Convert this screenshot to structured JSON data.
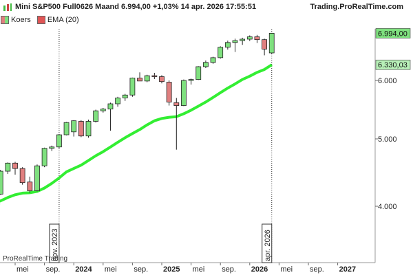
{
  "header": {
    "title": "Mini S&P500 Full0626 Maand 6.994,00 +1,03% 14 apr. 2026 17:55:51",
    "brand": "Trading.ProRealTime.com"
  },
  "legend": [
    {
      "label": "Koers",
      "color": "#55dd55"
    },
    {
      "label": "EMA (20)",
      "color": "#22cc22"
    }
  ],
  "watermark": "ProRealTime Trading",
  "chart_data": {
    "type": "candlestick",
    "colors": {
      "up": "#7fe07f",
      "down": "#e07f7f",
      "ema": "#33ee33",
      "price_tag": "#7fe07f",
      "ema_tag": "#b8f0b8"
    },
    "y_ticks": [
      4000,
      5000,
      6000
    ],
    "y_tick_labels": [
      "4.000",
      "5.000",
      "6.000"
    ],
    "last_price_label": "6.994,00",
    "ema_label": "6.330,03",
    "x_tick_labels": [
      {
        "month": 0,
        "label": "mei"
      },
      {
        "month": 4,
        "label": "sep."
      },
      {
        "month": 8,
        "label": "2024"
      },
      {
        "month": 12,
        "label": "mei"
      },
      {
        "month": 16,
        "label": "sep."
      },
      {
        "month": 20,
        "label": "2025"
      },
      {
        "month": 24,
        "label": "mei"
      },
      {
        "month": 28,
        "label": "sep."
      },
      {
        "month": 32,
        "label": "2026"
      },
      {
        "month": 36,
        "label": "mei"
      },
      {
        "month": 40,
        "label": "sep."
      },
      {
        "month": 44,
        "label": "2027"
      }
    ],
    "markers": [
      {
        "month": 6,
        "label": "nov. 2023"
      },
      {
        "month": 35,
        "label": "apr. 2026"
      }
    ],
    "candles": [
      {
        "m": -4,
        "o": 4130,
        "h": 4200,
        "l": 4070,
        "c": 4180
      },
      {
        "m": -3,
        "o": 4160,
        "h": 4220,
        "l": 4120,
        "c": 4200
      },
      {
        "m": -2,
        "o": 4180,
        "h": 4540,
        "l": 4170,
        "c": 4520
      },
      {
        "m": -1,
        "o": 4520,
        "h": 4650,
        "l": 4480,
        "c": 4640
      },
      {
        "m": 0,
        "o": 4640,
        "h": 4660,
        "l": 4470,
        "c": 4560
      },
      {
        "m": 1,
        "o": 4560,
        "h": 4580,
        "l": 4320,
        "c": 4350
      },
      {
        "m": 2,
        "o": 4360,
        "h": 4440,
        "l": 4200,
        "c": 4230
      },
      {
        "m": 3,
        "o": 4230,
        "h": 4620,
        "l": 4220,
        "c": 4600
      },
      {
        "m": 4,
        "o": 4600,
        "h": 4870,
        "l": 4580,
        "c": 4860
      },
      {
        "m": 5,
        "o": 4860,
        "h": 4900,
        "l": 4820,
        "c": 4880
      },
      {
        "m": 6,
        "o": 4880,
        "h": 5080,
        "l": 4860,
        "c": 5070
      },
      {
        "m": 7,
        "o": 5070,
        "h": 5290,
        "l": 5060,
        "c": 5280
      },
      {
        "m": 8,
        "o": 5120,
        "h": 5320,
        "l": 5040,
        "c": 5310
      },
      {
        "m": 9,
        "o": 5300,
        "h": 5320,
        "l": 5030,
        "c": 5050
      },
      {
        "m": 10,
        "o": 5050,
        "h": 5330,
        "l": 5020,
        "c": 5300
      },
      {
        "m": 11,
        "o": 5300,
        "h": 5500,
        "l": 5280,
        "c": 5480
      },
      {
        "m": 12,
        "o": 5480,
        "h": 5530,
        "l": 5450,
        "c": 5510
      },
      {
        "m": 13,
        "o": 5510,
        "h": 5620,
        "l": 5140,
        "c": 5600
      },
      {
        "m": 14,
        "o": 5600,
        "h": 5720,
        "l": 5550,
        "c": 5700
      },
      {
        "m": 15,
        "o": 5700,
        "h": 5770,
        "l": 5650,
        "c": 5750
      },
      {
        "m": 16,
        "o": 5750,
        "h": 6060,
        "l": 5720,
        "c": 6050
      },
      {
        "m": 17,
        "o": 6050,
        "h": 6170,
        "l": 5990,
        "c": 5990
      },
      {
        "m": 18,
        "o": 5990,
        "h": 6120,
        "l": 5970,
        "c": 6100
      },
      {
        "m": 19,
        "o": 6100,
        "h": 6160,
        "l": 6030,
        "c": 6080
      },
      {
        "m": 20,
        "o": 6080,
        "h": 6110,
        "l": 5950,
        "c": 5980
      },
      {
        "m": 21,
        "o": 5970,
        "h": 6000,
        "l": 5570,
        "c": 5630
      },
      {
        "m": 22,
        "o": 5620,
        "h": 5700,
        "l": 4840,
        "c": 5570
      },
      {
        "m": 23,
        "o": 5570,
        "h": 6020,
        "l": 5560,
        "c": 6000
      },
      {
        "m": 24,
        "o": 6000,
        "h": 6040,
        "l": 5930,
        "c": 6020
      },
      {
        "m": 25,
        "o": 6020,
        "h": 6300,
        "l": 6010,
        "c": 6290
      },
      {
        "m": 26,
        "o": 6290,
        "h": 6420,
        "l": 6260,
        "c": 6380
      },
      {
        "m": 27,
        "o": 6380,
        "h": 6500,
        "l": 6350,
        "c": 6480
      },
      {
        "m": 28,
        "o": 6480,
        "h": 6720,
        "l": 6460,
        "c": 6700
      },
      {
        "m": 29,
        "o": 6700,
        "h": 6840,
        "l": 6650,
        "c": 6800
      },
      {
        "m": 30,
        "o": 6800,
        "h": 6880,
        "l": 6600,
        "c": 6840
      },
      {
        "m": 31,
        "o": 6840,
        "h": 6900,
        "l": 6750,
        "c": 6870
      },
      {
        "m": 32,
        "o": 6870,
        "h": 6950,
        "l": 6830,
        "c": 6920
      },
      {
        "m": 33,
        "o": 6920,
        "h": 6960,
        "l": 6790,
        "c": 6860
      },
      {
        "m": 34,
        "o": 6860,
        "h": 6880,
        "l": 6530,
        "c": 6660
      },
      {
        "m": 35,
        "o": 6580,
        "h": 7000,
        "l": 6560,
        "c": 6994
      }
    ],
    "ema": [
      [
        -4,
        4040
      ],
      [
        -3,
        4050
      ],
      [
        -2,
        4080
      ],
      [
        -1,
        4130
      ],
      [
        0,
        4170
      ],
      [
        1,
        4195
      ],
      [
        2,
        4200
      ],
      [
        3,
        4220
      ],
      [
        4,
        4270
      ],
      [
        5,
        4340
      ],
      [
        6,
        4420
      ],
      [
        7,
        4510
      ],
      [
        8,
        4560
      ],
      [
        9,
        4610
      ],
      [
        10,
        4680
      ],
      [
        11,
        4750
      ],
      [
        12,
        4810
      ],
      [
        13,
        4880
      ],
      [
        14,
        4950
      ],
      [
        15,
        5020
      ],
      [
        16,
        5090
      ],
      [
        17,
        5160
      ],
      [
        18,
        5240
      ],
      [
        19,
        5310
      ],
      [
        20,
        5350
      ],
      [
        21,
        5370
      ],
      [
        22,
        5380
      ],
      [
        23,
        5430
      ],
      [
        24,
        5490
      ],
      [
        25,
        5560
      ],
      [
        26,
        5630
      ],
      [
        27,
        5710
      ],
      [
        28,
        5790
      ],
      [
        29,
        5870
      ],
      [
        30,
        5940
      ],
      [
        31,
        6020
      ],
      [
        32,
        6090
      ],
      [
        33,
        6170
      ],
      [
        34,
        6230
      ],
      [
        35,
        6330
      ]
    ]
  }
}
